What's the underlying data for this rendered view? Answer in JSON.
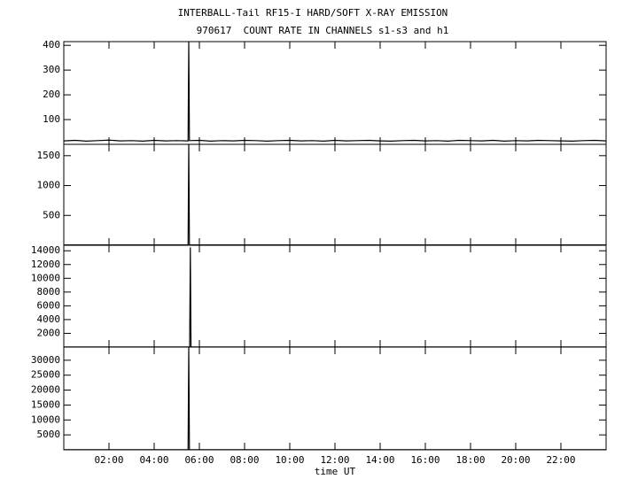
{
  "chart_data": [
    {
      "type": "line",
      "title": "INTERBALL-Tail RF15-I HARD/SOFT X-RAY EMISSION",
      "subtitle": "970617  COUNT RATE IN CHANNELS s1-s3 and h1",
      "xlim": [
        0,
        24
      ],
      "ylim": [
        0,
        415
      ],
      "yticks": [
        100,
        200,
        300,
        400
      ],
      "series": [
        {
          "color": "#000000",
          "x": [
            0,
            0.5,
            1,
            1.5,
            2,
            2.5,
            3,
            3.5,
            4,
            4.5,
            5,
            5.5,
            5.53,
            5.56,
            6,
            6.5,
            7,
            7.5,
            8,
            8.5,
            9,
            9.5,
            10,
            10.5,
            11,
            11.5,
            12,
            12.5,
            13,
            13.5,
            14,
            14.5,
            15,
            15.5,
            16,
            16.5,
            17,
            17.5,
            18,
            18.5,
            19,
            19.5,
            20,
            20.5,
            21,
            21.5,
            22,
            22.5,
            23,
            23.5,
            24
          ],
          "values": [
            14,
            16,
            13,
            15,
            17,
            14,
            15,
            13,
            16,
            14,
            15,
            14,
            415,
            15,
            16,
            13,
            15,
            14,
            16,
            15,
            13,
            15,
            16,
            14,
            15,
            13,
            16,
            14,
            15,
            16,
            14,
            13,
            15,
            16,
            14,
            15,
            13,
            16,
            15,
            14,
            16,
            13,
            15,
            14,
            16,
            15,
            14,
            13,
            15,
            16,
            14
          ]
        }
      ]
    },
    {
      "type": "line",
      "xlim": [
        0,
        24
      ],
      "ylim": [
        0,
        1690
      ],
      "yticks": [
        500,
        1000,
        1500
      ],
      "series": [
        {
          "color": "#000000",
          "x": [
            0,
            5.5,
            5.53,
            5.56,
            24
          ],
          "values": [
            5,
            5,
            1690,
            5,
            5
          ]
        }
      ]
    },
    {
      "type": "line",
      "xlim": [
        0,
        24
      ],
      "ylim": [
        0,
        14800
      ],
      "yticks": [
        2000,
        4000,
        6000,
        8000,
        10000,
        12000,
        14000
      ],
      "series": [
        {
          "color": "#000000",
          "x": [
            0,
            5.57,
            5.6,
            5.63,
            24
          ],
          "values": [
            20,
            20,
            14500,
            20,
            20
          ]
        }
      ]
    },
    {
      "type": "line",
      "xlim": [
        0,
        24
      ],
      "ylim": [
        0,
        34400
      ],
      "yticks": [
        5000,
        10000,
        15000,
        20000,
        25000,
        30000
      ],
      "xlabel": "time UT",
      "xticks": [
        {
          "value": 2,
          "label": "02:00"
        },
        {
          "value": 4,
          "label": "04:00"
        },
        {
          "value": 6,
          "label": "06:00"
        },
        {
          "value": 8,
          "label": "08:00"
        },
        {
          "value": 10,
          "label": "10:00"
        },
        {
          "value": 12,
          "label": "12:00"
        },
        {
          "value": 14,
          "label": "14:00"
        },
        {
          "value": 16,
          "label": "16:00"
        },
        {
          "value": 18,
          "label": "18:00"
        },
        {
          "value": 20,
          "label": "20:00"
        },
        {
          "value": 22,
          "label": "22:00"
        }
      ],
      "series": [
        {
          "color": "#000000",
          "x": [
            0,
            5.5,
            5.53,
            5.56,
            24
          ],
          "values": [
            50,
            50,
            34400,
            50,
            50
          ]
        }
      ]
    }
  ]
}
